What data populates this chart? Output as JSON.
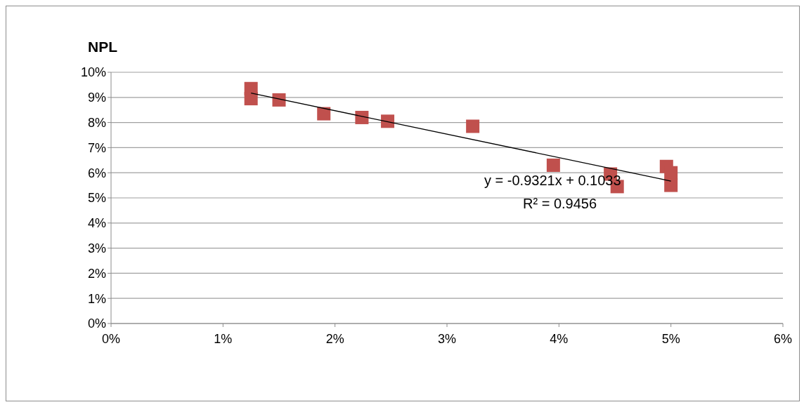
{
  "chart_data": {
    "type": "scatter",
    "title": "NPL",
    "series": [
      {
        "color": "#c0504d",
        "marker": "square",
        "x": [
          1.25,
          1.25,
          1.5,
          1.9,
          2.24,
          2.47,
          3.23,
          3.95,
          4.46,
          4.52,
          4.96,
          5.0,
          5.0
        ],
        "values": [
          9.35,
          8.95,
          8.9,
          8.35,
          8.2,
          8.05,
          7.85,
          6.3,
          5.95,
          5.45,
          6.25,
          6.0,
          5.5
        ]
      },
      {
        "type": "line",
        "color": "#000000",
        "marker": "none",
        "x": [
          1.25,
          5.0
        ],
        "values": [
          9.17,
          5.67
        ]
      }
    ],
    "xlim": [
      0,
      6
    ],
    "xticks": [
      {
        "value": 0,
        "label": "0%"
      },
      {
        "value": 1,
        "label": "1%"
      },
      {
        "value": 2,
        "label": "2%"
      },
      {
        "value": 3,
        "label": "3%"
      },
      {
        "value": 4,
        "label": "4%"
      },
      {
        "value": 5,
        "label": "5%"
      },
      {
        "value": 6,
        "label": "6%"
      }
    ],
    "ylim": [
      0,
      10
    ],
    "yticks": [
      {
        "value": 0,
        "label": "0%"
      },
      {
        "value": 1,
        "label": "1%"
      },
      {
        "value": 2,
        "label": "2%"
      },
      {
        "value": 3,
        "label": "3%"
      },
      {
        "value": 4,
        "label": "4%"
      },
      {
        "value": 5,
        "label": "5%"
      },
      {
        "value": 6,
        "label": "6%"
      },
      {
        "value": 7,
        "label": "7%"
      },
      {
        "value": 8,
        "label": "8%"
      },
      {
        "value": 9,
        "label": "9%"
      },
      {
        "value": 10,
        "label": "10%"
      }
    ],
    "grid": "y",
    "annotations": [
      "y = -0.9321x + 0.1033",
      "R² = 0.9456"
    ]
  }
}
